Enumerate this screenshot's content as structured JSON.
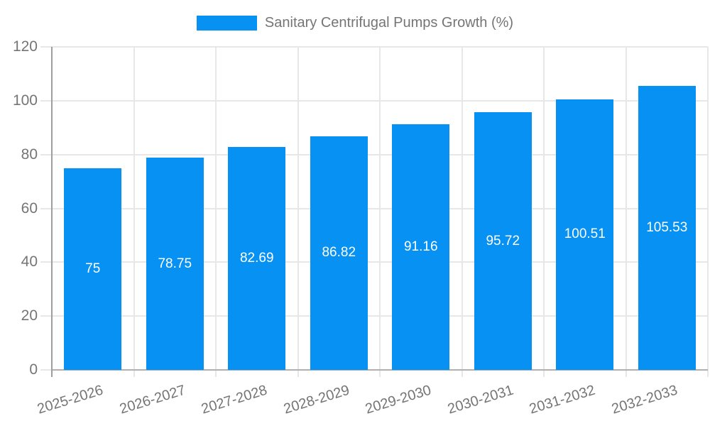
{
  "chart_data": {
    "type": "bar",
    "title": "Sanitary Centrifugal Pumps Growth (%)",
    "legend": [
      {
        "label": "Sanitary Centrifugal Pumps Growth (%)",
        "color": "#0791F2"
      }
    ],
    "legend_position": "top-center",
    "categories": [
      "2025-2026",
      "2026-2027",
      "2027-2028",
      "2028-2029",
      "2029-2030",
      "2030-2031",
      "2031-2032",
      "2032-2033"
    ],
    "series": [
      {
        "name": "Sanitary Centrifugal Pumps Growth (%)",
        "values": [
          75,
          78.75,
          82.69,
          86.82,
          91.16,
          95.72,
          100.51,
          105.53
        ]
      }
    ],
    "value_labels": [
      "75",
      "78.75",
      "82.69",
      "86.82",
      "91.16",
      "95.72",
      "100.51",
      "105.53"
    ],
    "xlabel": "",
    "ylabel": "",
    "ylim": [
      0,
      120
    ],
    "yticks": [
      0,
      20,
      40,
      60,
      80,
      100,
      120
    ],
    "grid": true,
    "bar_label_position": "center"
  },
  "colors": {
    "bar": "#0791F2",
    "bar_value_text": "#FFFFFF",
    "axis_text": "#757575",
    "legend_text": "#757575",
    "gridline": "#E7E7E7",
    "y_axis_line": "#9E9E9E",
    "x_baseline": "#B0B0B0",
    "background": "#FFFFFF"
  }
}
